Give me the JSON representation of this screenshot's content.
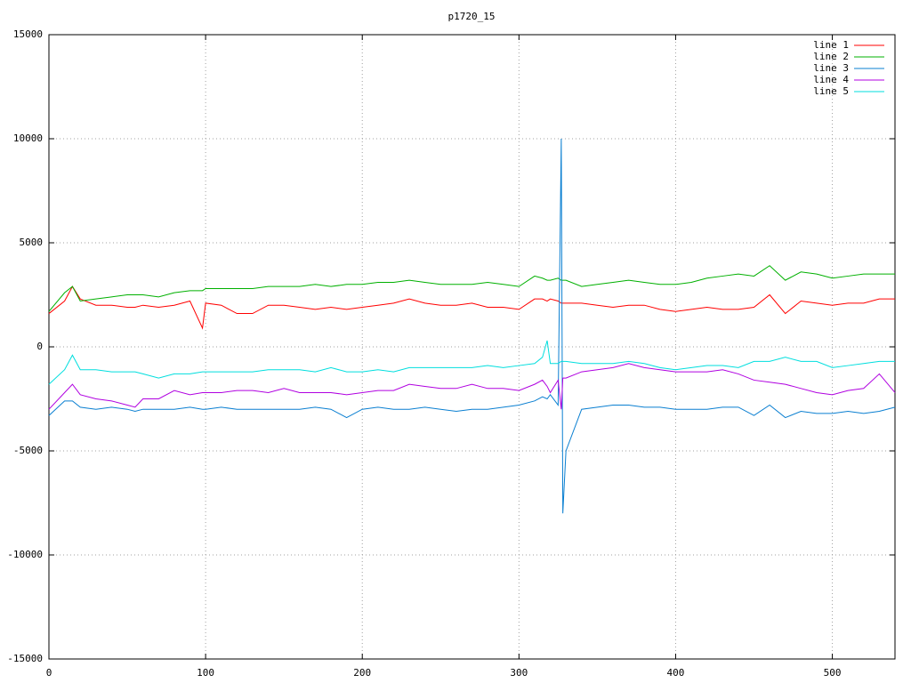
{
  "chart_data": {
    "type": "line",
    "title": "p1720_15",
    "x": [
      0,
      10,
      15,
      20,
      30,
      40,
      50,
      55,
      60,
      70,
      80,
      90,
      98,
      100,
      110,
      120,
      130,
      140,
      150,
      160,
      170,
      180,
      190,
      200,
      210,
      220,
      230,
      240,
      250,
      260,
      270,
      280,
      290,
      300,
      310,
      315,
      318,
      320,
      325,
      327,
      328,
      330,
      340,
      350,
      360,
      370,
      380,
      390,
      400,
      410,
      420,
      430,
      440,
      450,
      460,
      470,
      480,
      490,
      500,
      510,
      520,
      530,
      540
    ],
    "series": [
      {
        "name": "line 1",
        "color": "#ff0000",
        "values": [
          1600,
          2200,
          2900,
          2300,
          2000,
          2000,
          1900,
          1900,
          2000,
          1900,
          2000,
          2200,
          900,
          2100,
          2000,
          1600,
          1600,
          2000,
          2000,
          1900,
          1800,
          1900,
          1800,
          1900,
          2000,
          2100,
          2300,
          2100,
          2000,
          2000,
          2100,
          1900,
          1900,
          1800,
          2300,
          2300,
          2200,
          2300,
          2200,
          2100,
          2100,
          2100,
          2100,
          2000,
          1900,
          2000,
          2000,
          1800,
          1700,
          1800,
          1900,
          1800,
          1800,
          1900,
          2500,
          1600,
          2200,
          2100,
          2000,
          2100,
          2100,
          2300,
          2300
        ]
      },
      {
        "name": "line 2",
        "color": "#00b000",
        "values": [
          1700,
          2600,
          2900,
          2200,
          2300,
          2400,
          2500,
          2500,
          2500,
          2400,
          2600,
          2700,
          2700,
          2800,
          2800,
          2800,
          2800,
          2900,
          2900,
          2900,
          3000,
          2900,
          3000,
          3000,
          3100,
          3100,
          3200,
          3100,
          3000,
          3000,
          3000,
          3100,
          3000,
          2900,
          3400,
          3300,
          3200,
          3200,
          3300,
          3200,
          3200,
          3200,
          2900,
          3000,
          3100,
          3200,
          3100,
          3000,
          3000,
          3100,
          3300,
          3400,
          3500,
          3400,
          3900,
          3200,
          3600,
          3500,
          3300,
          3400,
          3500,
          3500,
          3500
        ]
      },
      {
        "name": "line 3",
        "color": "#0a7fd1",
        "values": [
          -3300,
          -2600,
          -2600,
          -2900,
          -3000,
          -2900,
          -3000,
          -3100,
          -3000,
          -3000,
          -3000,
          -2900,
          -3000,
          -3000,
          -2900,
          -3000,
          -3000,
          -3000,
          -3000,
          -3000,
          -2900,
          -3000,
          -3400,
          -3000,
          -2900,
          -3000,
          -3000,
          -2900,
          -3000,
          -3100,
          -3000,
          -3000,
          -2900,
          -2800,
          -2600,
          -2400,
          -2500,
          -2300,
          -2800,
          10000,
          -8000,
          -5000,
          -3000,
          -2900,
          -2800,
          -2800,
          -2900,
          -2900,
          -3000,
          -3000,
          -3000,
          -2900,
          -2900,
          -3300,
          -2800,
          -3400,
          -3100,
          -3200,
          -3200,
          -3100,
          -3200,
          -3100,
          -2900
        ]
      },
      {
        "name": "line 4",
        "color": "#b000e0",
        "values": [
          -3000,
          -2200,
          -1800,
          -2300,
          -2500,
          -2600,
          -2800,
          -2900,
          -2500,
          -2500,
          -2100,
          -2300,
          -2200,
          -2200,
          -2200,
          -2100,
          -2100,
          -2200,
          -2000,
          -2200,
          -2200,
          -2200,
          -2300,
          -2200,
          -2100,
          -2100,
          -1800,
          -1900,
          -2000,
          -2000,
          -1800,
          -2000,
          -2000,
          -2100,
          -1800,
          -1600,
          -1900,
          -2200,
          -1600,
          -3000,
          -1500,
          -1500,
          -1200,
          -1100,
          -1000,
          -800,
          -1000,
          -1100,
          -1200,
          -1200,
          -1200,
          -1100,
          -1300,
          -1600,
          -1700,
          -1800,
          -2000,
          -2200,
          -2300,
          -2100,
          -2000,
          -1300,
          -2200
        ]
      },
      {
        "name": "line 5",
        "color": "#00dede",
        "values": [
          -1800,
          -1100,
          -400,
          -1100,
          -1100,
          -1200,
          -1200,
          -1200,
          -1300,
          -1500,
          -1300,
          -1300,
          -1200,
          -1200,
          -1200,
          -1200,
          -1200,
          -1100,
          -1100,
          -1100,
          -1200,
          -1000,
          -1200,
          -1200,
          -1100,
          -1200,
          -1000,
          -1000,
          -1000,
          -1000,
          -1000,
          -900,
          -1000,
          -900,
          -800,
          -500,
          300,
          -800,
          -800,
          -700,
          -700,
          -700,
          -800,
          -800,
          -800,
          -700,
          -800,
          -1000,
          -1100,
          -1000,
          -900,
          -900,
          -1000,
          -700,
          -700,
          -500,
          -700,
          -700,
          -1000,
          -900,
          -800,
          -700,
          -700
        ]
      }
    ],
    "xlim": [
      0,
      540
    ],
    "ylim": [
      -15000,
      15000
    ],
    "xticks": [
      0,
      100,
      200,
      300,
      400,
      500
    ],
    "yticks": [
      -15000,
      -10000,
      -5000,
      0,
      5000,
      10000,
      15000
    ],
    "grid": true,
    "legend": "top-right"
  }
}
